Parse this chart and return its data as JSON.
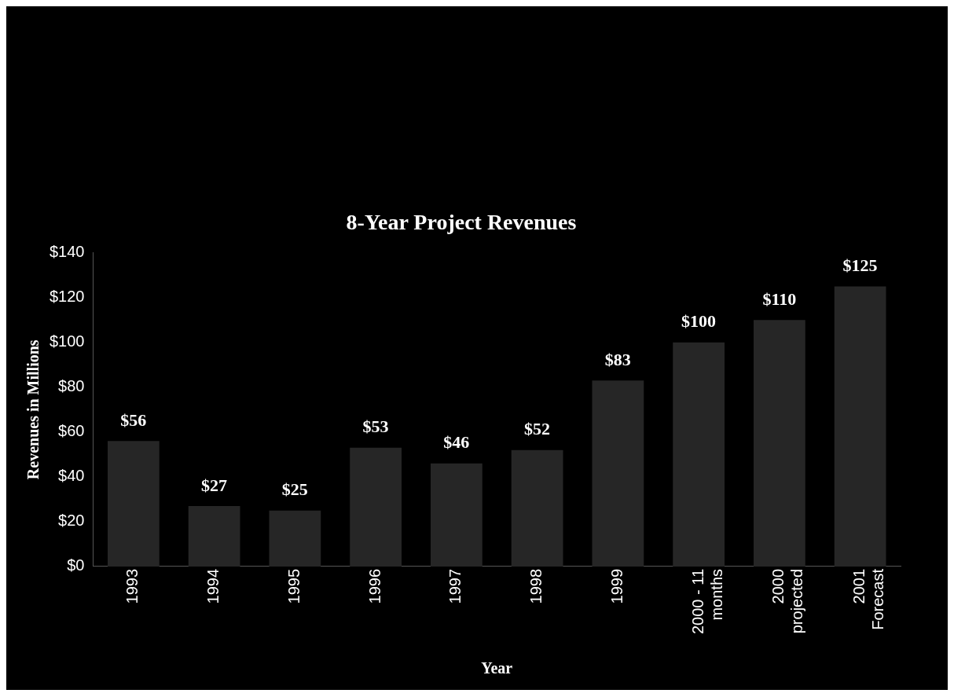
{
  "chart_data": {
    "type": "bar",
    "title": "8-Year Project Revenues",
    "xlabel": "Year",
    "ylabel": "Revenues in Millions",
    "categories": [
      "1993",
      "1994",
      "1995",
      "1996",
      "1997",
      "1998",
      "1999",
      "2000 - 11 months",
      "2000 projected",
      "2001 Forecast"
    ],
    "values": [
      56,
      27,
      25,
      53,
      46,
      52,
      83,
      100,
      110,
      125
    ],
    "color": "#262626",
    "value_labels": [
      "$56",
      "$27",
      "$25",
      "$53",
      "$46",
      "$52",
      "$83",
      "$100",
      "$110",
      "$125"
    ],
    "ylim": [
      0,
      140
    ],
    "yticks": [
      {
        "value": 0,
        "label": "$0"
      },
      {
        "value": 20,
        "label": "$20"
      },
      {
        "value": 40,
        "label": "$40"
      },
      {
        "value": 60,
        "label": "$60"
      },
      {
        "value": 80,
        "label": "$80"
      },
      {
        "value": 100,
        "label": "$100"
      },
      {
        "value": 120,
        "label": "$120"
      },
      {
        "value": 140,
        "label": "$140"
      }
    ],
    "grid": false,
    "legend": false
  }
}
